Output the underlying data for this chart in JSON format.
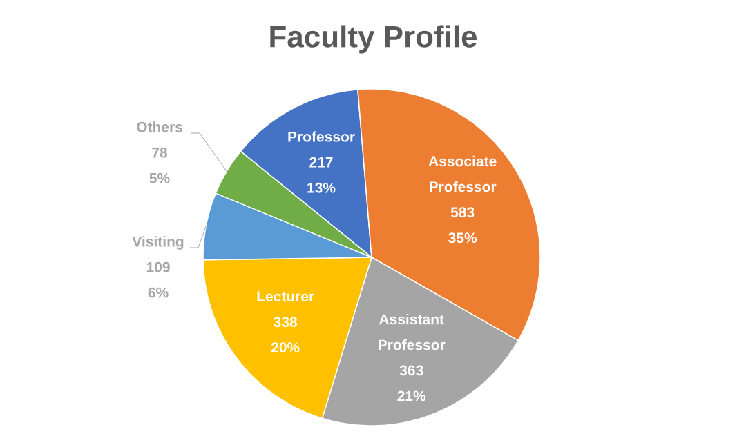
{
  "chart_data": {
    "type": "pie",
    "title": "Faculty Profile",
    "categories": [
      "Professor",
      "Associate Professor",
      "Assistant Professor",
      "Lecturer",
      "Visiting",
      "Others"
    ],
    "values": [
      217,
      583,
      363,
      338,
      109,
      78
    ],
    "colors": [
      "#4472c4",
      "#ed7d31",
      "#a5a5a5",
      "#ffc000",
      "#5b9bd5",
      "#70ad47"
    ],
    "value_labels": [
      "217 13%",
      "583 35%",
      "363 21%",
      "338 20%",
      "109 6%",
      "78 5%"
    ]
  }
}
